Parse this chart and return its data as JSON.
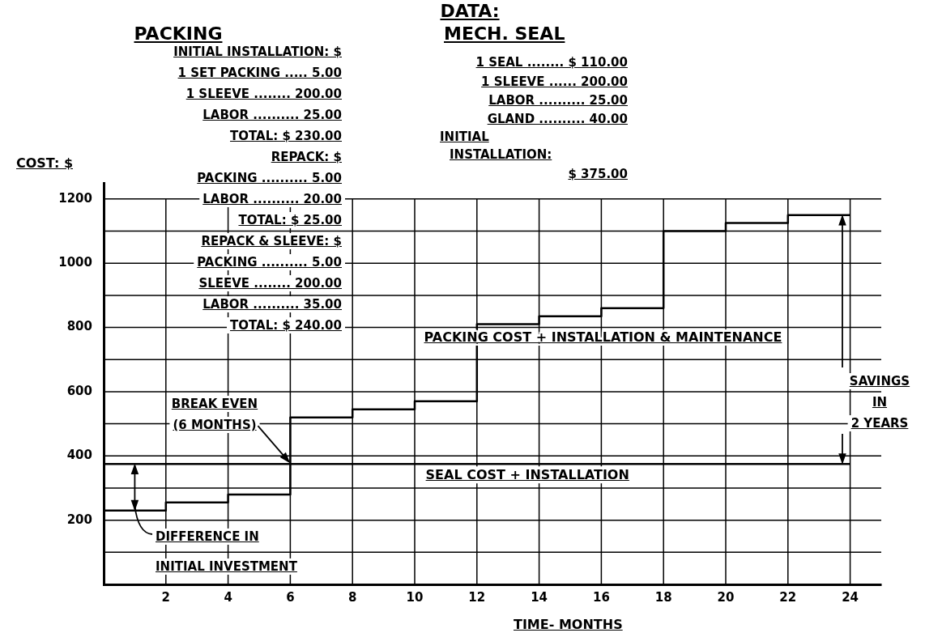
{
  "chart_data": {
    "type": "step",
    "xlabel": "TIME- MONTHS",
    "ylabel": "COST: $",
    "series": [
      {
        "name": "PACKING COST + INSTALLATION & MAINTENANCE",
        "color": "#000000",
        "x": [
          0,
          2,
          4,
          6,
          8,
          10,
          12,
          14,
          16,
          18,
          20,
          22,
          24
        ],
        "values": [
          230,
          255,
          280,
          520,
          545,
          570,
          810,
          835,
          860,
          1100,
          1125,
          1150,
          1150
        ]
      },
      {
        "name": "SEAL COST + INSTALLATION",
        "color": "#000000",
        "x": [
          0,
          24
        ],
        "values": [
          375,
          375
        ]
      }
    ],
    "xlim": [
      0,
      25
    ],
    "xticks": [
      2,
      4,
      6,
      8,
      10,
      12,
      14,
      16,
      18,
      20,
      22,
      24
    ],
    "ylim": [
      0,
      1250
    ],
    "yticks": [
      {
        "value": 100,
        "label": null
      },
      200,
      {
        "value": 300,
        "label": null
      },
      400,
      {
        "value": 500,
        "label": null
      },
      600,
      {
        "value": 700,
        "label": null
      },
      800,
      {
        "value": 900,
        "label": null
      },
      1000,
      {
        "value": 1100,
        "label": null
      },
      1200
    ],
    "grid": true,
    "legend": false,
    "annotations": [
      "DATA:",
      "PACKING",
      "INITIAL INSTALLATION: $",
      "1 SET PACKING ..... 5.00",
      "1 SLEEVE ........ 200.00",
      "LABOR .......... 25.00",
      "TOTAL: $ 230.00",
      "REPACK: $",
      "PACKING .......... 5.00",
      "LABOR .......... 20.00",
      "TOTAL: $ 25.00",
      "REPACK & SLEEVE: $",
      "PACKING .......... 5.00",
      "SLEEVE ........ 200.00",
      "LABOR .......... 35.00",
      "TOTAL: $ 240.00",
      "MECH. SEAL",
      "1 SEAL ........ $ 110.00",
      "1 SLEEVE ...... 200.00",
      "LABOR .......... 25.00",
      "GLAND .......... 40.00",
      "INITIAL",
      "INSTALLATION:",
      "$ 375.00",
      {
        "text": "BREAK EVEN\n(6 MONTHS)",
        "x": 6,
        "y": 375
      },
      "DIFFERENCE IN\nINITIAL INVESTMENT",
      {
        "text": "SAVINGS\nIN\n2 YEARS",
        "x": 23.75,
        "y": 1150
      }
    ]
  }
}
